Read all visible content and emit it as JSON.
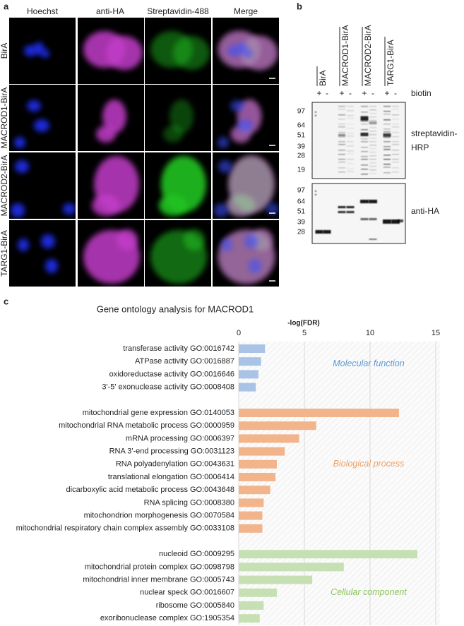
{
  "panel_a": {
    "label": "a",
    "columns": [
      "Hoechst",
      "anti-HA",
      "Streptavidin-488",
      "Merge"
    ],
    "rows": [
      "BirA",
      "MACROD1-BirA",
      "MACROD2-BirA",
      "TARG1-BirA"
    ]
  },
  "panel_b": {
    "label": "b",
    "lanes": [
      {
        "name": "BirA",
        "conditions": [
          "+",
          "-"
        ]
      },
      {
        "name": "MACROD1-BirA",
        "conditions": [
          "+",
          "-"
        ]
      },
      {
        "name": "MACROD2-BirA",
        "conditions": [
          "+",
          "-"
        ]
      },
      {
        "name": "TARG1-BirA",
        "conditions": [
          "+",
          "-"
        ]
      }
    ],
    "treatment": "biotin",
    "blots": [
      {
        "antibody": [
          "streptavidin-",
          "HRP"
        ],
        "markers": [
          97,
          64,
          51,
          39,
          28,
          19
        ]
      },
      {
        "antibody": [
          "anti-HA"
        ],
        "markers": [
          97,
          64,
          51,
          39,
          28
        ]
      }
    ]
  },
  "panel_c": {
    "label": "c"
  },
  "chart_data": {
    "type": "bar",
    "orientation": "horizontal",
    "title": "Gene ontology analysis for MACROD1",
    "xlabel": "-log(FDR)",
    "xlim": [
      0,
      15
    ],
    "xticks": [
      0,
      5,
      10,
      15
    ],
    "grid": true,
    "series": [
      {
        "name": "Molecular function",
        "color": "#a9c3e6",
        "label_color": "#5b9bd5",
        "categories": [
          "transferase activity GO:0016742",
          "ATPase activity GO:0016887",
          "oxidoreductase activity GO:0016646",
          "3'-5' exonuclease activity GO:0008408"
        ],
        "values": [
          2.0,
          1.7,
          1.5,
          1.3
        ]
      },
      {
        "name": "Biological process",
        "color": "#f2b48a",
        "label_color": "#f0a064",
        "categories": [
          "mitochondrial gene expression GO:0140053",
          "mitochondrial RNA metabolic process GO:0000959",
          "mRNA processing GO:0006397",
          "RNA 3'-end processing GO:0031123",
          "RNA polyadenylation GO:0043631",
          "translational elongation GO:0006414",
          "dicarboxylic acid metabolic process GO:0043648",
          "RNA splicing GO:0008380",
          "mitochondrion morphogenesis GO:0070584",
          "mitochondrial respiratory chain complex assembly GO:0033108"
        ],
        "values": [
          12.2,
          5.9,
          4.6,
          3.5,
          2.9,
          2.8,
          2.4,
          1.9,
          1.8,
          1.8
        ]
      },
      {
        "name": "Cellular component",
        "color": "#c6e0b4",
        "label_color": "#8cc45e",
        "categories": [
          "nucleoid GO:0009295",
          "mitochondrial protein complex GO:0098798",
          "mitochondrial inner membrane GO:0005743",
          "nuclear speck GO:0016607",
          "ribosome GO:0005840",
          "exoribonuclease complex GO:1905354"
        ],
        "values": [
          13.6,
          8.0,
          5.6,
          2.9,
          1.9,
          1.6
        ]
      }
    ]
  }
}
